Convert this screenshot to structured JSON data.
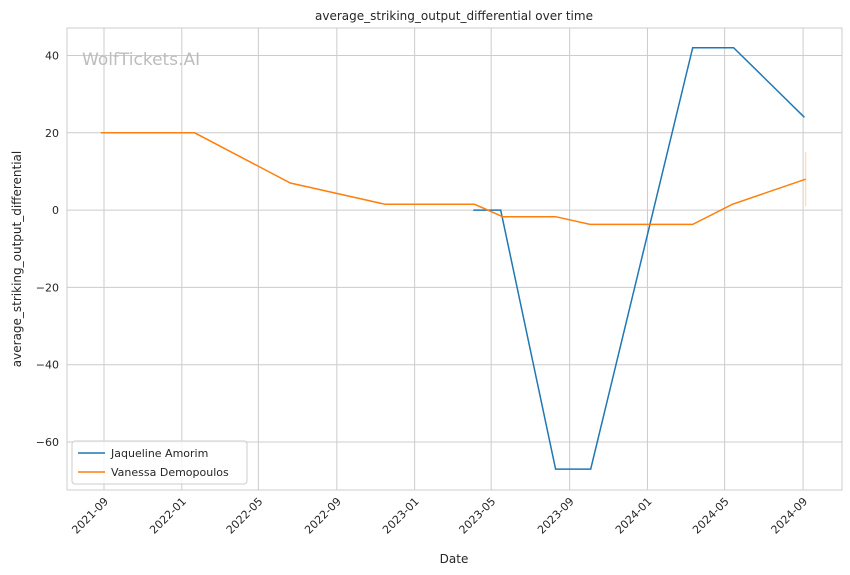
{
  "chart_data": {
    "type": "line",
    "title": "average_striking_output_differential over time",
    "xlabel": "Date",
    "ylabel": "average_striking_output_differential",
    "watermark": "WolfTickets.AI",
    "xlim": [
      "2021-07-05",
      "2024-11-01"
    ],
    "ylim": [
      -72.4,
      47.1
    ],
    "yticks": [
      40,
      20,
      0,
      -20,
      -40,
      -60
    ],
    "ytick_labels": [
      "40",
      "20",
      "0",
      "−20",
      "−40",
      "−60"
    ],
    "xticks": [
      "2021-09-01",
      "2022-01-01",
      "2022-05-01",
      "2022-09-01",
      "2023-01-01",
      "2023-05-01",
      "2023-09-01",
      "2024-01-01",
      "2024-05-01",
      "2024-09-01"
    ],
    "xtick_labels": [
      "2021-09",
      "2022-01",
      "2022-05",
      "2022-09",
      "2023-01",
      "2023-05",
      "2023-09",
      "2024-01",
      "2024-05",
      "2024-09"
    ],
    "grid": true,
    "legend_position": "lower-left",
    "series": [
      {
        "name": "Jaqueline Amorim",
        "color": "#1f77b4",
        "x": [
          "2023-04-03",
          "2023-05-16",
          "2023-08-10",
          "2023-10-04",
          "2024-03-12",
          "2024-05-15",
          "2024-09-03"
        ],
        "y": [
          0,
          0,
          -67,
          -67,
          42,
          42,
          24
        ]
      },
      {
        "name": "Vanessa Demopoulos",
        "color": "#ff7f0e",
        "x": [
          "2021-08-27",
          "2022-01-21",
          "2022-06-20",
          "2022-11-16",
          "2023-04-05",
          "2023-05-19",
          "2023-08-10",
          "2023-10-03",
          "2024-03-12",
          "2024-05-13",
          "2024-09-05"
        ],
        "y": [
          20,
          20,
          7,
          1.5,
          1.5,
          -1.7,
          -1.7,
          -3.7,
          -3.7,
          1.5,
          8
        ],
        "band_last": [
          1,
          15
        ]
      }
    ]
  }
}
